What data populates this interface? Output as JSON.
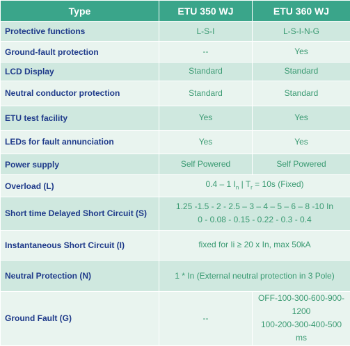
{
  "header": {
    "type": "Type",
    "col1": "ETU 350 WJ",
    "col2": "ETU 360 WJ"
  },
  "rows": [
    {
      "label": "Protective functions",
      "v1": "L-S-I",
      "v2": "L-S-I-N-G"
    },
    {
      "label": "Ground-fault protection",
      "v1": "--",
      "v2": "Yes"
    },
    {
      "label": "LCD Display",
      "v1": "Standard",
      "v2": "Standard"
    },
    {
      "label": "Neutral conductor protection",
      "v1": "Standard",
      "v2": "Standard"
    },
    {
      "label": "ETU test facility",
      "v1": "Yes",
      "v2": "Yes"
    },
    {
      "label": "LEDs for fault annunciation",
      "v1": "Yes",
      "v2": "Yes"
    },
    {
      "label": "Power supply",
      "v1": "Self Powered",
      "v2": "Self Powered"
    }
  ],
  "overload": {
    "label": "Overload (L)",
    "value_a": "0.4 – 1 I",
    "value_sub_n": "n",
    "value_b": " | T",
    "value_sub_r": "r",
    "value_c": " = 10s (Fixed)"
  },
  "short_time": {
    "label": "Short time Delayed Short Circuit (S)",
    "line1": "1.25 -1.5 - 2 - 2.5 – 3 – 4 – 5 – 6 – 8 -10 In",
    "line2": "0 - 0.08 - 0.15 - 0.22 - 0.3 - 0.4"
  },
  "instantaneous": {
    "label": "Instantaneous Short Circuit (I)",
    "value": "fixed for Ii ≥ 20 x In, max 50kA"
  },
  "neutral": {
    "label": "Neutral Protection (N)",
    "value": "1 * In (External neutral protection in 3 Pole)"
  },
  "ground": {
    "label": "Ground Fault (G)",
    "v1": "--",
    "v2_line1": "OFF-100-300-600-900-1200",
    "v2_line2": "100-200-300-400-500 ms"
  }
}
